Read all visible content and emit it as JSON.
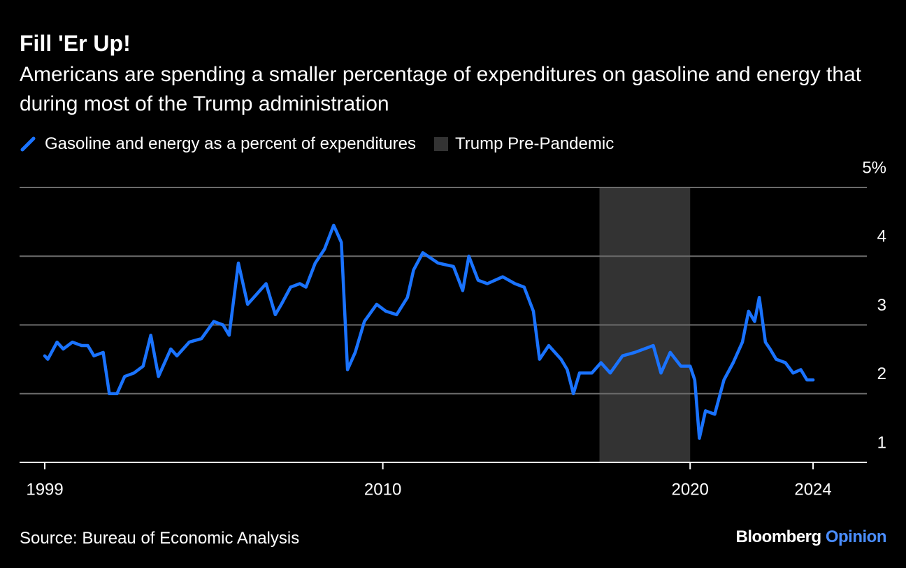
{
  "chart_data": {
    "type": "line",
    "title": "Fill 'Er Up!",
    "subtitle": "Americans are spending a smaller percentage of expenditures on gasoline and energy that during most of the Trump administration",
    "source": "Source: Bureau of Economic Analysis",
    "brand": {
      "name": "Bloomberg",
      "suffix": "Opinion"
    },
    "x": [
      1999.0,
      1999.1,
      1999.4,
      1999.6,
      1999.9,
      2000.2,
      2000.4,
      2000.6,
      2000.9,
      2001.1,
      2001.35,
      2001.6,
      2001.9,
      2002.2,
      2002.45,
      2002.7,
      2003.1,
      2003.3,
      2003.7,
      2004.1,
      2004.5,
      2004.8,
      2005.0,
      2005.3,
      2005.6,
      2005.8,
      2006.0,
      2006.2,
      2006.5,
      2006.7,
      2007.0,
      2007.3,
      2007.5,
      2007.8,
      2008.1,
      2008.4,
      2008.65,
      2008.85,
      2009.1,
      2009.4,
      2009.8,
      2010.1,
      2010.45,
      2010.8,
      2011.0,
      2011.3,
      2011.8,
      2012.3,
      2012.6,
      2012.8,
      2013.1,
      2013.4,
      2013.9,
      2014.3,
      2014.6,
      2014.9,
      2015.1,
      2015.4,
      2015.8,
      2016.0,
      2016.2,
      2016.4,
      2016.8,
      2017.1,
      2017.4,
      2017.8,
      2018.2,
      2018.8,
      2019.05,
      2019.35,
      2019.7,
      2020.0,
      2020.15,
      2020.3,
      2020.5,
      2020.8,
      2021.1,
      2021.4,
      2021.7,
      2021.9,
      2022.1,
      2022.25,
      2022.45,
      2022.6,
      2022.8,
      2023.1,
      2023.35,
      2023.6,
      2023.8,
      2024.0
    ],
    "series": [
      {
        "name": "Gasoline and energy as a percent of expenditures",
        "color": "#1a73ff",
        "values": [
          2.55,
          2.5,
          2.75,
          2.65,
          2.75,
          2.7,
          2.7,
          2.55,
          2.6,
          2.0,
          2.0,
          2.25,
          2.3,
          2.4,
          2.85,
          2.25,
          2.65,
          2.55,
          2.75,
          2.8,
          3.05,
          3.0,
          2.85,
          3.9,
          3.3,
          3.4,
          3.5,
          3.6,
          3.15,
          3.3,
          3.55,
          3.6,
          3.55,
          3.9,
          4.1,
          4.45,
          4.2,
          2.35,
          2.6,
          3.05,
          3.3,
          3.2,
          3.15,
          3.4,
          3.8,
          4.05,
          3.9,
          3.85,
          3.5,
          4.0,
          3.65,
          3.6,
          3.7,
          3.6,
          3.55,
          3.2,
          2.5,
          2.7,
          2.5,
          2.35,
          2.0,
          2.3,
          2.3,
          2.45,
          2.3,
          2.55,
          2.6,
          2.7,
          2.3,
          2.6,
          2.4,
          2.4,
          2.2,
          1.35,
          1.75,
          1.7,
          2.2,
          2.45,
          2.75,
          3.2,
          3.05,
          3.4,
          2.75,
          2.65,
          2.5,
          2.45,
          2.3,
          2.35,
          2.2,
          2.2
        ]
      }
    ],
    "bands": [
      {
        "name": "Trump Pre-Pandemic",
        "start": 2017.05,
        "end": 2020.0,
        "color": "#333333"
      }
    ],
    "xlim": [
      1998.18,
      2025.75
    ],
    "xticks": [
      1999,
      2010,
      2020,
      2024
    ],
    "ylim": [
      1,
      5
    ],
    "yticks": [
      1,
      2,
      3,
      4,
      {
        "value": 5,
        "label": "5%"
      }
    ],
    "grid": true
  }
}
